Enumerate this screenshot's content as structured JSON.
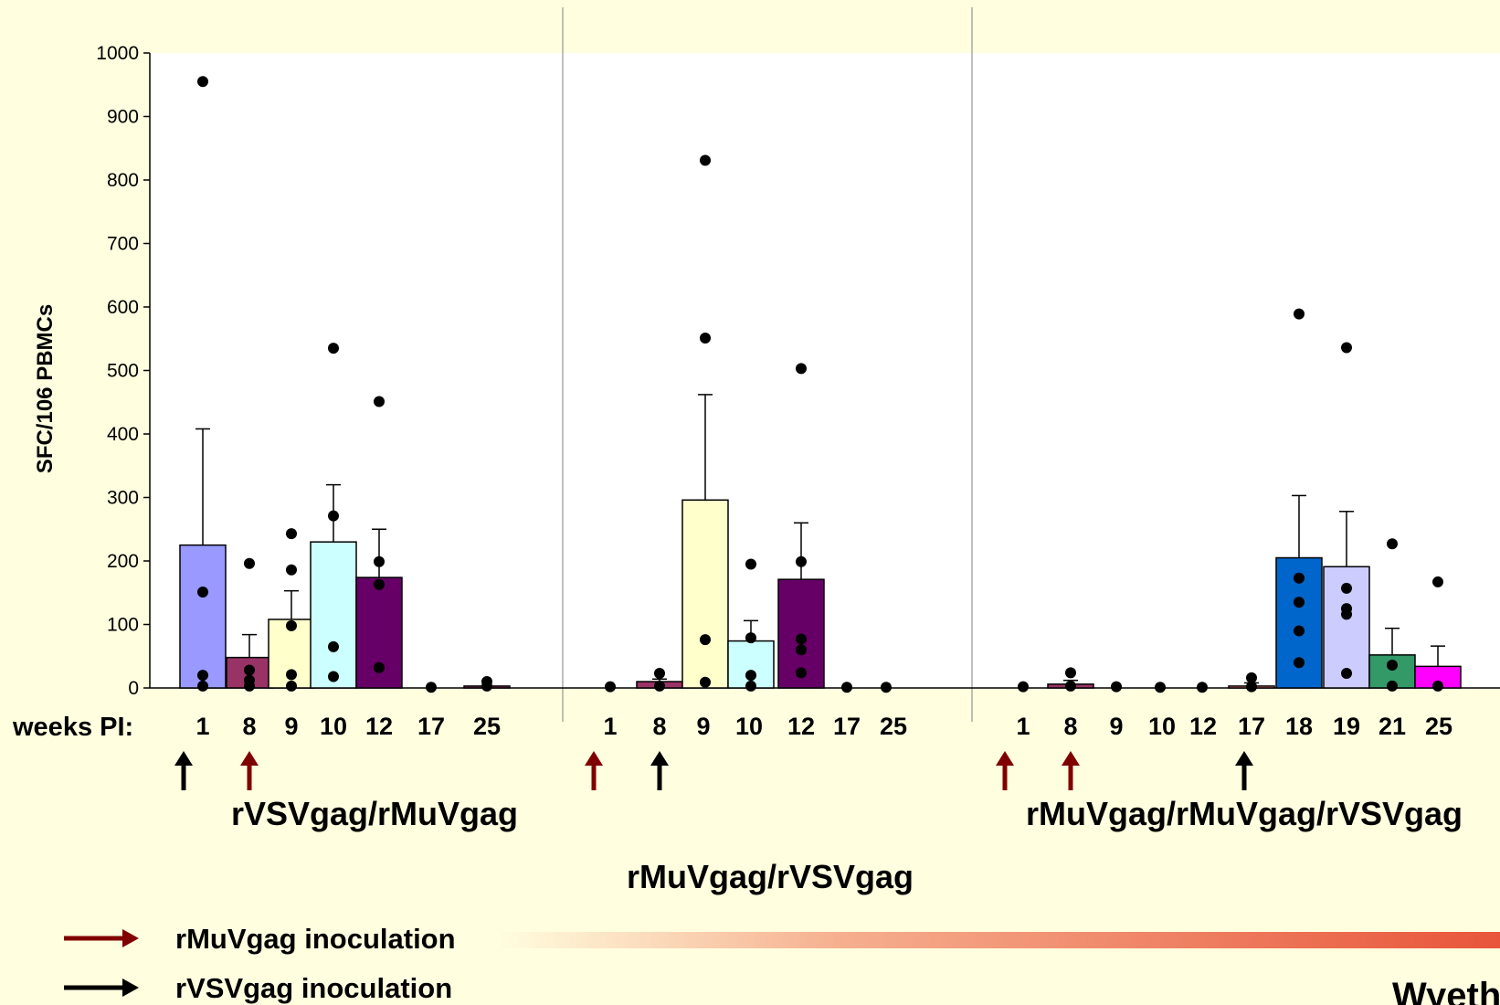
{
  "chart_data": {
    "type": "bar",
    "ylabel": "SFC/106 PBMCs",
    "ylim": [
      0,
      1000
    ],
    "yticks": [
      0,
      100,
      200,
      300,
      400,
      500,
      600,
      700,
      800,
      900,
      1000
    ],
    "x_axis_title": "weeks PI:",
    "groups": [
      {
        "name": "rVSVgag/rMuVgag",
        "bars": [
          {
            "week": "1",
            "mean": 225,
            "err": 408,
            "color": "#9999FF",
            "points": [
              955,
              151,
              20,
              3
            ]
          },
          {
            "week": "8",
            "mean": 48,
            "err": 84,
            "color": "#993366",
            "points": [
              196,
              28,
              12,
              3
            ]
          },
          {
            "week": "9",
            "mean": 108,
            "err": 153,
            "color": "#FFFFCC",
            "points": [
              243,
              186,
              98,
              21,
              3
            ]
          },
          {
            "week": "10",
            "mean": 230,
            "err": 320,
            "color": "#CCFFFF",
            "points": [
              535,
              271,
              65,
              18
            ]
          },
          {
            "week": "12",
            "mean": 174,
            "err": 250,
            "color": "#660066",
            "points": [
              451,
              199,
              163,
              32
            ]
          },
          {
            "week": "17",
            "mean": 0,
            "err": null,
            "color": "#FF8080",
            "points": [
              1
            ]
          },
          {
            "week": "25",
            "mean": 3,
            "err": null,
            "color": "#993366",
            "points": [
              10,
              3
            ]
          }
        ],
        "inoculations": [
          {
            "at_week": "1",
            "type": "rVSVgag"
          },
          {
            "at_week": "8",
            "type": "rMuVgag"
          }
        ]
      },
      {
        "name": "rMuVgag/rVSVgag",
        "bars": [
          {
            "week": "1",
            "mean": 0,
            "err": null,
            "color": "#9999FF",
            "points": [
              2
            ]
          },
          {
            "week": "8",
            "mean": 10,
            "err": 14,
            "color": "#993366",
            "points": [
              23,
              3
            ]
          },
          {
            "week": "9",
            "mean": 296,
            "err": 462,
            "color": "#FFFFCC",
            "points": [
              831,
              551,
              76,
              9
            ]
          },
          {
            "week": "10",
            "mean": 74,
            "err": 106,
            "color": "#CCFFFF",
            "points": [
              195,
              79,
              20,
              3
            ]
          },
          {
            "week": "12",
            "mean": 171,
            "err": 260,
            "color": "#660066",
            "points": [
              503,
              199,
              77,
              60,
              24
            ]
          },
          {
            "week": "17",
            "mean": 0,
            "err": null,
            "color": "#FF8080",
            "points": [
              1
            ]
          },
          {
            "week": "25",
            "mean": 0,
            "err": null,
            "color": "#993366",
            "points": [
              1
            ]
          }
        ],
        "inoculations": [
          {
            "at_week": "1",
            "type": "rMuVgag"
          },
          {
            "at_week": "8",
            "type": "rVSVgag"
          }
        ]
      },
      {
        "name": "rMuVgag/rMuVgag/rVSVgag",
        "bars": [
          {
            "week": "1",
            "mean": 0,
            "err": null,
            "color": "#9999FF",
            "points": [
              2
            ]
          },
          {
            "week": "8",
            "mean": 6,
            "err": 12,
            "color": "#993366",
            "points": [
              24,
              3
            ]
          },
          {
            "week": "9",
            "mean": 0,
            "err": null,
            "color": "#FFFFCC",
            "points": [
              2
            ]
          },
          {
            "week": "10",
            "mean": 0,
            "err": null,
            "color": "#CCFFFF",
            "points": [
              1
            ]
          },
          {
            "week": "12",
            "mean": 0,
            "err": null,
            "color": "#660066",
            "points": [
              1
            ]
          },
          {
            "week": "17",
            "mean": 3,
            "err": 8,
            "color": "#FF8080",
            "points": [
              16,
              2
            ]
          },
          {
            "week": "18",
            "mean": 205,
            "err": 303,
            "color": "#0066CC",
            "points": [
              589,
              173,
              135,
              90,
              40
            ]
          },
          {
            "week": "19",
            "mean": 191,
            "err": 278,
            "color": "#CCCCFF",
            "points": [
              536,
              157,
              125,
              116,
              23
            ]
          },
          {
            "week": "21",
            "mean": 52,
            "err": 94,
            "color": "#339966",
            "points": [
              227,
              36,
              3
            ]
          },
          {
            "week": "25",
            "mean": 34,
            "err": 66,
            "color": "#FF00FF",
            "points": [
              167,
              3
            ]
          }
        ],
        "inoculations": [
          {
            "at_week": "1",
            "type": "rMuVgag"
          },
          {
            "at_week": "8",
            "type": "rMuVgag"
          },
          {
            "at_week": "17",
            "type": "rVSVgag"
          }
        ]
      }
    ],
    "legend": [
      {
        "label": "rMuVgag inoculation",
        "color": "#800000"
      },
      {
        "label": "rVSVgag inoculation",
        "color": "#000000"
      }
    ],
    "legend_position": "bottom-left",
    "grid": false
  },
  "logo": "Wyeth"
}
